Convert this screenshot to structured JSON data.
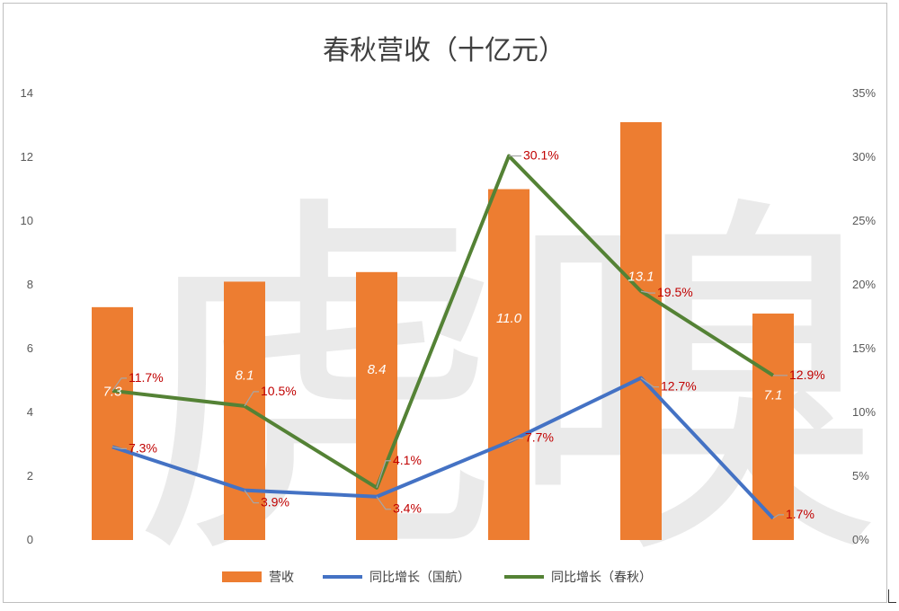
{
  "watermark": "虎嗅",
  "colors": {
    "bar": "#ed7d31",
    "line1": "#4472c4",
    "line2": "#548235",
    "label": "#c00000",
    "leader": "#a6a6a6"
  },
  "chart_data": {
    "type": "bar",
    "title": "春秋营收（十亿元）",
    "categories": [
      "",
      "",
      "",
      "",
      "",
      ""
    ],
    "y_left": {
      "min": 0,
      "max": 14,
      "ticks": [
        "0",
        "2",
        "4",
        "6",
        "8",
        "10",
        "12",
        "14"
      ]
    },
    "y_right": {
      "min": 0,
      "max": 0.35,
      "ticks": [
        "0%",
        "5%",
        "10%",
        "15%",
        "20%",
        "25%",
        "30%",
        "35%"
      ]
    },
    "series": [
      {
        "name": "营收",
        "type": "bar",
        "axis": "left",
        "values": [
          7.3,
          8.1,
          8.4,
          11.0,
          13.1,
          7.1
        ],
        "labels": [
          "7.3",
          "8.1",
          "8.4",
          "11.0",
          "13.1",
          "7.1"
        ]
      },
      {
        "name": "同比增长（国航）",
        "type": "line",
        "axis": "right",
        "values": [
          0.073,
          0.039,
          0.034,
          0.077,
          0.127,
          0.017
        ],
        "labels": [
          "7.3%",
          "3.9%",
          "3.4%",
          "7.7%",
          "12.7%",
          "1.7%"
        ]
      },
      {
        "name": "同比增长（春秋）",
        "type": "line",
        "axis": "right",
        "values": [
          0.117,
          0.105,
          0.041,
          0.301,
          0.195,
          0.129
        ],
        "labels": [
          "11.7%",
          "10.5%",
          "4.1%",
          "30.1%",
          "19.5%",
          "12.9%"
        ]
      }
    ],
    "legend_position": "bottom",
    "grid": false
  }
}
